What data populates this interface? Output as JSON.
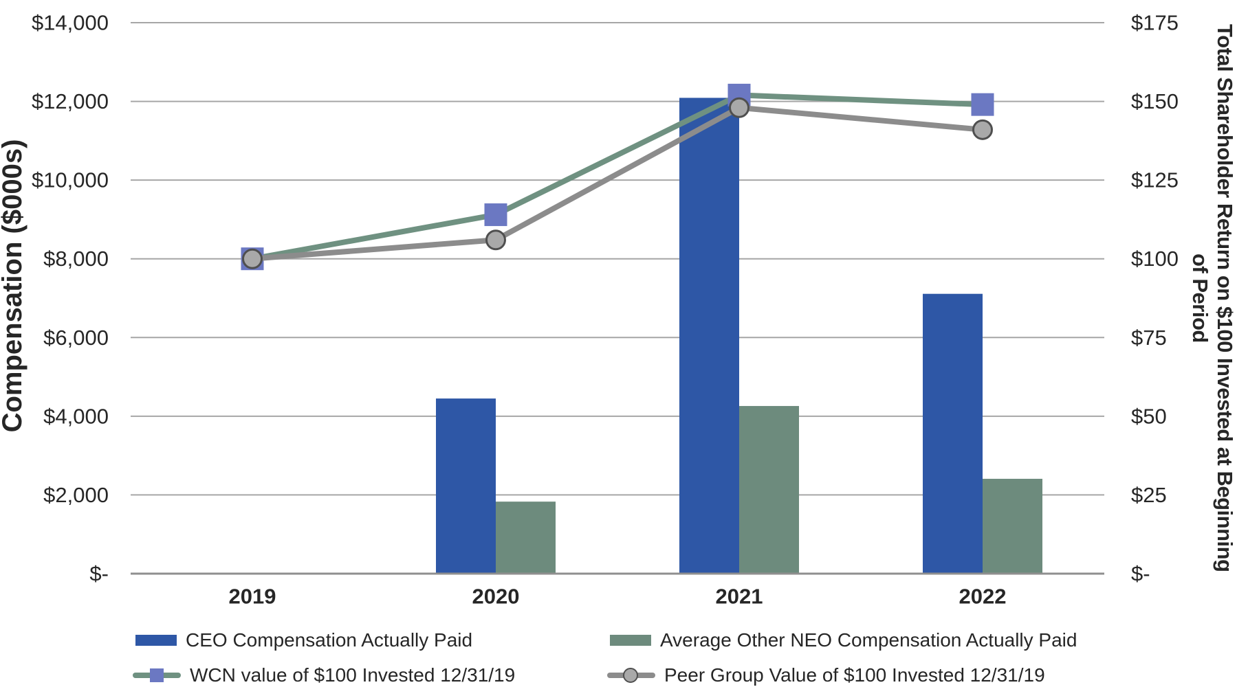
{
  "colors": {
    "text": "#262626",
    "gridline": "#A6A6A6",
    "axis_baseline": "#8F8F8F",
    "ceo_bar": "#2E57A6",
    "neo_bar": "#6D8B7D",
    "wcn_line": "#6F9181",
    "wcn_marker": "#6B78C2",
    "peer_line": "#8C8C8C",
    "peer_marker_fill": "#A9A9A9",
    "peer_marker_stroke": "#4F4F4F"
  },
  "left_axis": {
    "title": "Compensation ($000s)",
    "ticks": [
      "$14,000",
      "$12,000",
      "$10,000",
      "$8,000",
      "$6,000",
      "$4,000",
      "$2,000",
      "$-"
    ]
  },
  "right_axis": {
    "title_line1": "Total Shareholder Return on $100 Invested at Beginning",
    "title_line2": "of Period",
    "ticks": [
      "$175",
      "$150",
      "$125",
      "$100",
      "$75",
      "$50",
      "$25",
      "$-"
    ]
  },
  "x_axis": {
    "categories": [
      "2019",
      "2020",
      "2021",
      "2022"
    ]
  },
  "chart_data": {
    "type": "combo bar+line, dual y-axes",
    "categories": [
      "2019",
      "2020",
      "2021",
      "2022"
    ],
    "left_ylabel": "Compensation ($000s)",
    "right_ylabel": "Total Shareholder Return on $100 Invested at Beginning of Period",
    "left_ylim": [
      0,
      14000
    ],
    "left_step": 2000,
    "right_ylim": [
      0,
      175
    ],
    "right_step": 25,
    "grid": true,
    "legend_position": "bottom",
    "series": [
      {
        "name": "CEO Compensation Actually Paid",
        "type": "bar",
        "axis": "left",
        "values": [
          0,
          4450,
          12090,
          7110
        ],
        "color": "#2E57A6"
      },
      {
        "name": "Average Other NEO Compensation Actually Paid",
        "type": "bar",
        "axis": "left",
        "values": [
          0,
          1830,
          4260,
          2410
        ],
        "color": "#6D8B7D"
      },
      {
        "name": "WCN value of $100 Invested 12/31/19",
        "type": "line",
        "axis": "right",
        "values": [
          100,
          114,
          152,
          149
        ],
        "color": "#6F9181",
        "marker": "square",
        "marker_color": "#6B78C2"
      },
      {
        "name": "Peer Group Value of $100 Invested 12/31/19",
        "type": "line",
        "axis": "right",
        "values": [
          100,
          106,
          148,
          141
        ],
        "color": "#8C8C8C",
        "marker": "circle",
        "marker_color": "#A9A9A9",
        "marker_stroke": "#4F4F4F"
      }
    ]
  }
}
